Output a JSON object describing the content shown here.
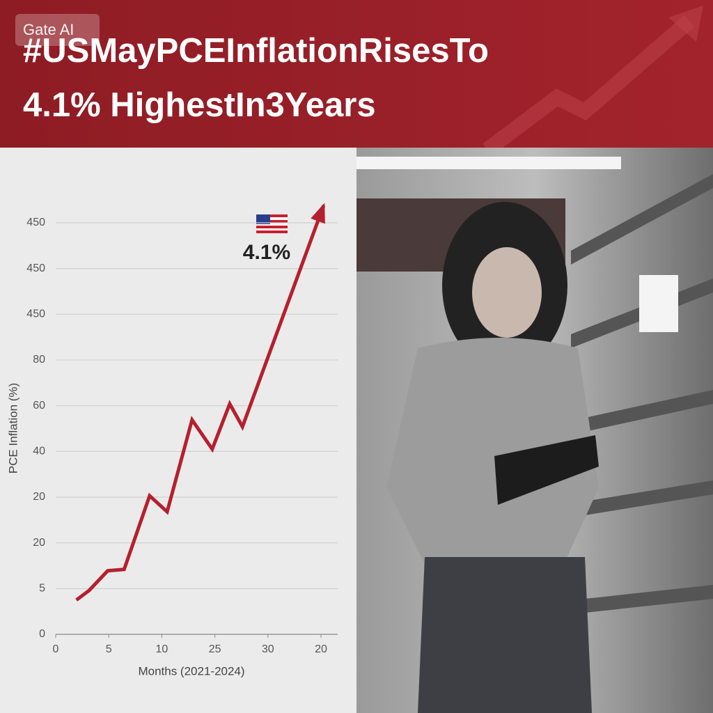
{
  "header": {
    "watermark": "Gate AI",
    "title_lines": [
      "#USMayPCEInflationRisesTo",
      "4.1% HighestIn3Years"
    ]
  },
  "chart_data": {
    "type": "line",
    "y_label": "PCE Inflation (%)",
    "x_label": "Months (2021-2024)",
    "annotation": "4.1%",
    "series": [
      {
        "color": "#b5202e",
        "x": [
          0.39,
          0.63,
          0.98,
          1.29,
          1.77,
          2.1,
          2.57,
          2.95,
          3.28,
          3.52,
          5.05
        ],
        "values": [
          0.75,
          0.96,
          1.39,
          1.42,
          3.03,
          2.68,
          4.69,
          4.05,
          5.04,
          4.54,
          9.38
        ]
      }
    ],
    "xlim": [
      0,
      5
    ],
    "xticks": [
      0,
      {
        "value": 1,
        "label": "5"
      },
      {
        "value": 2,
        "label": "10"
      },
      {
        "value": 3,
        "label": "25"
      },
      {
        "value": 4,
        "label": "30"
      },
      {
        "value": 5,
        "label": "20"
      }
    ],
    "ylim": [
      0,
      9
    ],
    "yticks": [
      0,
      {
        "value": 1,
        "label": "5"
      },
      {
        "value": 2,
        "label": "20"
      },
      {
        "value": 3,
        "label": "20"
      },
      {
        "value": 4,
        "label": "40"
      },
      {
        "value": 5,
        "label": "60"
      },
      {
        "value": 6,
        "label": "80"
      },
      {
        "value": 7,
        "label": "450"
      },
      {
        "value": 8,
        "label": "450"
      },
      {
        "value": 9,
        "label": "450"
      }
    ],
    "grid": true
  }
}
